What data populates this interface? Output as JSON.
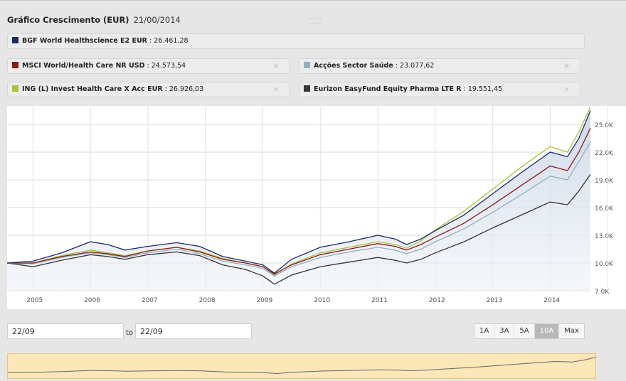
{
  "header": {
    "title": "Gráfico Crescimento (EUR)",
    "date": "21/00/2014"
  },
  "legend": [
    {
      "name": "BGF World Healthscience E2 EUR",
      "value": "26.461,28",
      "color": "#1a2a6c",
      "closable": false
    },
    {
      "name": "MSCI World/Health Care NR USD",
      "value": "24.573,54",
      "color": "#8b1a1a",
      "closable": true
    },
    {
      "name": "Acções Sector Saúde",
      "value": "23.077,62",
      "color": "#8fb0c0",
      "closable": true
    },
    {
      "name": "ING (L) Invest Health Care X Acc EUR",
      "value": "26.926,03",
      "color": "#a8c23a",
      "closable": true
    },
    {
      "name": "Eurizon EasyFund Equity Pharma LTE R",
      "value": "19.551,45",
      "color": "#3a3233",
      "closable": true
    }
  ],
  "legend_close_glyph": "×",
  "controls": {
    "from_date": "22/09",
    "to_label": "to",
    "to_date": "22/09",
    "range_buttons": [
      "1A",
      "3A",
      "5A",
      "10A",
      "Max"
    ],
    "active_range": "10A"
  },
  "chart_data": {
    "type": "line",
    "x_tick_labels": [
      "2005",
      "2006",
      "2007",
      "2008",
      "2009",
      "2010",
      "2011",
      "2012",
      "2013",
      "2014"
    ],
    "y_tick_labels": [
      "7.0K",
      "10.0K",
      "13.0K",
      "16.0K",
      "19.0K",
      "22.0K",
      "25.0K"
    ],
    "ylim": [
      7000,
      27000
    ],
    "x_range": [
      2004.55,
      2014.7
    ],
    "grid": true,
    "y_axis_side": "right",
    "series": [
      {
        "name": "BGF World Healthscience E2 EUR",
        "color": "#1a2a6c",
        "x": [
          2004.55,
          2005.0,
          2005.5,
          2006.0,
          2006.3,
          2006.6,
          2007.0,
          2007.5,
          2007.9,
          2008.3,
          2008.7,
          2009.0,
          2009.2,
          2009.5,
          2010.0,
          2010.5,
          2011.0,
          2011.3,
          2011.5,
          2011.75,
          2012.0,
          2012.5,
          2013.0,
          2013.5,
          2014.0,
          2014.3,
          2014.5,
          2014.7
        ],
        "y": [
          10000,
          10200,
          11100,
          12300,
          12000,
          11400,
          11800,
          12200,
          11800,
          10700,
          10200,
          9800,
          8900,
          10400,
          11700,
          12300,
          13000,
          12600,
          12000,
          12600,
          13500,
          15200,
          17500,
          19800,
          22000,
          21500,
          23500,
          26500
        ]
      },
      {
        "name": "MSCI World/Health Care NR USD",
        "color": "#8b1a1a",
        "x": [
          2004.55,
          2005.0,
          2005.5,
          2006.0,
          2006.3,
          2006.6,
          2007.0,
          2007.5,
          2007.9,
          2008.3,
          2008.7,
          2009.0,
          2009.2,
          2009.5,
          2010.0,
          2010.5,
          2011.0,
          2011.3,
          2011.5,
          2011.75,
          2012.0,
          2012.5,
          2013.0,
          2013.5,
          2014.0,
          2014.3,
          2014.5,
          2014.7
        ],
        "y": [
          10000,
          10000,
          10700,
          11200,
          11000,
          10700,
          11300,
          11700,
          11200,
          10400,
          10000,
          9600,
          8800,
          9800,
          10900,
          11500,
          12100,
          11800,
          11400,
          12000,
          12800,
          14300,
          16300,
          18400,
          20500,
          20000,
          22000,
          24600
        ]
      },
      {
        "name": "Acções Sector Saúde",
        "color": "#8fb0c0",
        "x": [
          2004.55,
          2005.0,
          2005.5,
          2006.0,
          2006.3,
          2006.6,
          2007.0,
          2007.5,
          2007.9,
          2008.3,
          2008.7,
          2009.0,
          2009.2,
          2009.5,
          2010.0,
          2010.5,
          2011.0,
          2011.3,
          2011.5,
          2011.75,
          2012.0,
          2012.5,
          2013.0,
          2013.5,
          2014.0,
          2014.3,
          2014.5,
          2014.7
        ],
        "y": [
          10000,
          9900,
          10600,
          11100,
          10900,
          10600,
          11100,
          11500,
          11000,
          10200,
          9800,
          9400,
          8600,
          9600,
          10600,
          11200,
          11700,
          11400,
          11000,
          11500,
          12300,
          13700,
          15500,
          17400,
          19400,
          19000,
          21000,
          23100
        ]
      },
      {
        "name": "ING (L) Invest Health Care X Acc EUR",
        "color": "#a8c23a",
        "x": [
          2004.55,
          2005.0,
          2005.5,
          2006.0,
          2006.3,
          2006.6,
          2007.0,
          2007.5,
          2007.9,
          2008.3,
          2008.7,
          2009.0,
          2009.2,
          2009.5,
          2010.0,
          2010.5,
          2011.0,
          2011.3,
          2011.5,
          2011.75,
          2012.0,
          2012.5,
          2013.0,
          2013.5,
          2014.0,
          2014.3,
          2014.5,
          2014.7
        ],
        "y": [
          10000,
          10000,
          10800,
          11400,
          11100,
          10800,
          11300,
          11700,
          11300,
          10500,
          10000,
          9600,
          8700,
          9900,
          11100,
          11700,
          12300,
          12000,
          11600,
          12400,
          13600,
          15600,
          18000,
          20400,
          22600,
          22000,
          24200,
          26900
        ]
      },
      {
        "name": "Eurizon EasyFund Equity Pharma LTE R",
        "color": "#3a3233",
        "x": [
          2004.55,
          2005.0,
          2005.5,
          2006.0,
          2006.3,
          2006.6,
          2007.0,
          2007.5,
          2007.9,
          2008.3,
          2008.7,
          2009.0,
          2009.2,
          2009.5,
          2010.0,
          2010.5,
          2011.0,
          2011.3,
          2011.5,
          2011.75,
          2012.0,
          2012.5,
          2013.0,
          2013.5,
          2014.0,
          2014.3,
          2014.5,
          2014.7
        ],
        "y": [
          10000,
          9600,
          10300,
          10900,
          10700,
          10400,
          10900,
          11200,
          10800,
          9800,
          9300,
          8600,
          7700,
          8700,
          9600,
          10100,
          10600,
          10300,
          10000,
          10400,
          11100,
          12300,
          13800,
          15200,
          16600,
          16300,
          17800,
          19600
        ]
      }
    ]
  }
}
